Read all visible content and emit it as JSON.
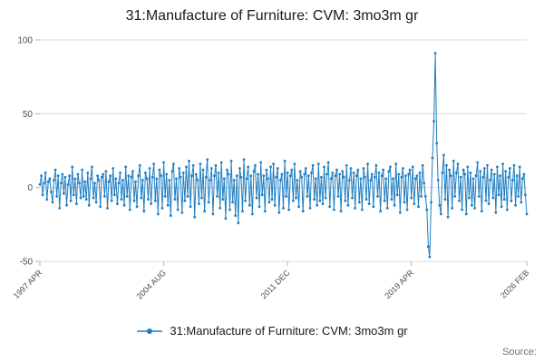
{
  "title": "31:Manufacture of Furniture: CVM: 3mo3m gr",
  "legend": {
    "label": "31:Manufacture of Furniture: CVM: 3mo3m gr"
  },
  "source": "Source:",
  "colors": {
    "line": "#1f7ec2",
    "grid": "#d9d9d9",
    "axis_tick": "#b3b3b3",
    "tick_text": "#4d4d4d",
    "title_text": "#1a1a1a"
  },
  "chart_data": {
    "type": "line",
    "title": "31:Manufacture of Furniture: CVM: 3mo3m gr",
    "xlabel": "",
    "ylabel": "",
    "ylim": [
      -50,
      100
    ],
    "y_ticks": [
      100,
      50,
      0,
      -50
    ],
    "x_start": "1997 APR",
    "x_end": "2026 FEB",
    "x_frequency": "monthly",
    "x_tick_labels": [
      "1997 APR",
      "2004 AUG",
      "2011 DEC",
      "2019 APR",
      "2026 FEB"
    ],
    "x_tick_indices": [
      0,
      88,
      176,
      264,
      346
    ],
    "markers": true,
    "grid": "horizontal",
    "legend_position": "bottom",
    "values": [
      2,
      8,
      -5,
      3,
      10,
      -8,
      4,
      6,
      -3,
      -10,
      5,
      12,
      -6,
      8,
      -14,
      3,
      9,
      -4,
      7,
      -12,
      2,
      8,
      -9,
      14,
      -5,
      6,
      -11,
      9,
      3,
      -7,
      12,
      -6,
      4,
      -8,
      10,
      -12,
      6,
      14,
      -7,
      3,
      -10,
      8,
      5,
      -13,
      7,
      9,
      -6,
      11,
      -14,
      4,
      8,
      -9,
      13,
      -5,
      6,
      -11,
      3,
      10,
      -8,
      5,
      -12,
      14,
      -6,
      8,
      -15,
      7,
      11,
      -9,
      4,
      -13,
      8,
      15,
      -7,
      5,
      -16,
      10,
      6,
      -8,
      13,
      -11,
      7,
      16,
      -9,
      6,
      -18,
      12,
      8,
      -14,
      17,
      -6,
      9,
      -12,
      5,
      -19,
      11,
      16,
      -8,
      6,
      -15,
      13,
      7,
      -17,
      10,
      -9,
      14,
      -6,
      18,
      -13,
      8,
      15,
      -20,
      9,
      5,
      -11,
      16,
      -7,
      12,
      -16,
      7,
      19,
      -10,
      5,
      13,
      -18,
      8,
      15,
      -6,
      10,
      -14,
      17,
      -8,
      6,
      -21,
      12,
      9,
      -15,
      18,
      -10,
      5,
      -19,
      8,
      -24,
      13,
      7,
      -16,
      19,
      -9,
      6,
      14,
      -12,
      8,
      -18,
      11,
      15,
      -7,
      9,
      -13,
      17,
      -5,
      8,
      -16,
      12,
      6,
      -10,
      14,
      -8,
      16,
      -12,
      7,
      13,
      -17,
      5,
      9,
      -14,
      18,
      -6,
      10,
      -15,
      8,
      12,
      -9,
      16,
      -7,
      5,
      -13,
      11,
      7,
      -16,
      9,
      13,
      -6,
      8,
      -14,
      10,
      15,
      -8,
      6,
      -12,
      16,
      -9,
      7,
      -11,
      14,
      -7,
      9,
      17,
      -13,
      6,
      10,
      -15,
      8,
      12,
      -6,
      9,
      -16,
      11,
      7,
      -9,
      15,
      -12,
      5,
      13,
      -7,
      10,
      -14,
      8,
      12,
      -10,
      6,
      -15,
      13,
      7,
      -8,
      16,
      -11,
      5,
      9,
      -13,
      7,
      15,
      -6,
      10,
      -16,
      8,
      12,
      -9,
      6,
      -14,
      11,
      14,
      -8,
      6,
      -12,
      16,
      -5,
      9,
      -17,
      7,
      13,
      -10,
      8,
      -15,
      9,
      12,
      -7,
      14,
      -11,
      6,
      8,
      -13,
      10,
      -6,
      15,
      3,
      -6,
      -15,
      -40,
      -47,
      -10,
      20,
      45,
      91,
      30,
      5,
      -12,
      -18,
      10,
      22,
      -8,
      15,
      -20,
      12,
      8,
      -14,
      18,
      -6,
      10,
      16,
      -9,
      7,
      -15,
      12,
      9,
      -18,
      14,
      -7,
      10,
      -12,
      6,
      -14,
      8,
      17,
      -6,
      11,
      -16,
      7,
      13,
      -9,
      15,
      -11,
      5,
      12,
      -7,
      9,
      -17,
      14,
      -5,
      8,
      -13,
      16,
      -8,
      11,
      -15,
      7,
      13,
      -9,
      5,
      15,
      -12,
      8,
      -6,
      14,
      -10,
      6,
      9,
      -5,
      -18
    ]
  }
}
